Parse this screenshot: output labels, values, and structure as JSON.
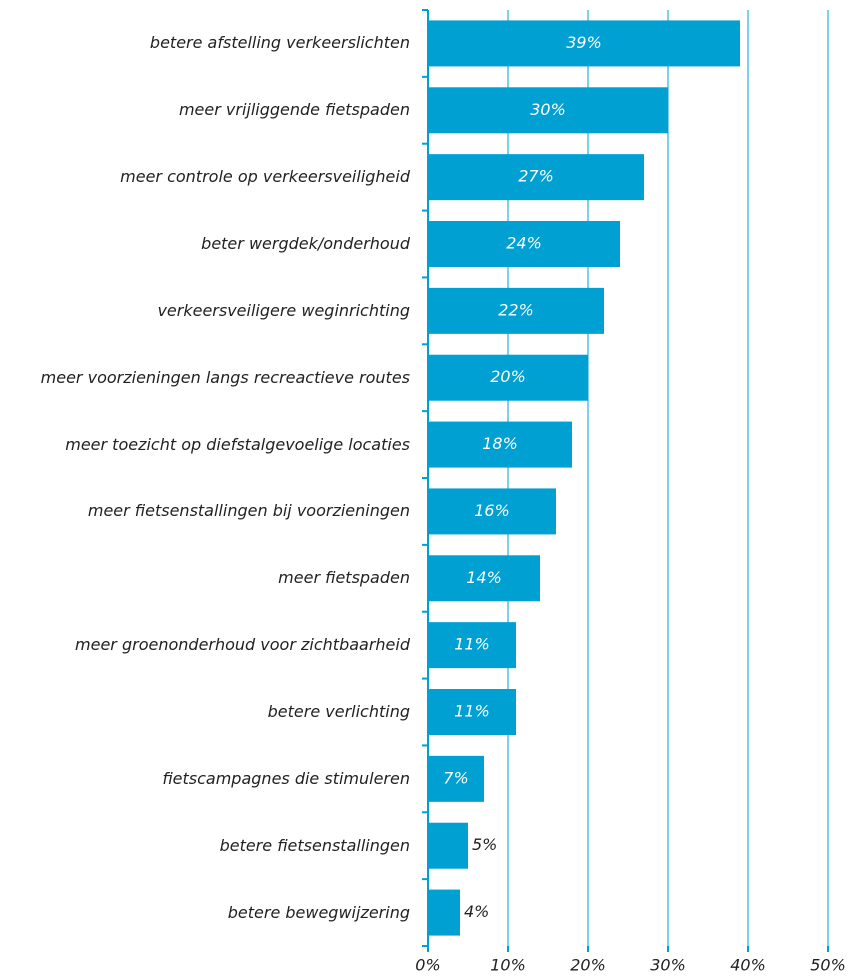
{
  "chart_data": {
    "type": "barh",
    "categories": [
      "betere afstelling verkeerslichten",
      "meer vrijliggende fietspaden",
      "meer controle op verkeersveiligheid",
      "beter wergdek/onderhoud",
      "verkeersveiligere weginrichting",
      "meer voorzieningen langs recreactieve routes",
      "meer toezicht op diefstalgevoelige locaties",
      "meer fietsenstallingen bij voorzieningen",
      "meer fietspaden",
      "meer groenonderhoud voor zichtbaarheid",
      "betere verlichting",
      "fietscampagnes die stimuleren",
      "betere fietsenstallingen",
      "betere bewegwijzering"
    ],
    "values": [
      39,
      30,
      27,
      24,
      22,
      20,
      18,
      16,
      14,
      11,
      11,
      7,
      5,
      4
    ],
    "value_labels": [
      "39%",
      "30%",
      "27%",
      "24%",
      "22%",
      "20%",
      "18%",
      "16%",
      "14%",
      "11%",
      "11%",
      "7%",
      "5%",
      "4%"
    ],
    "color": "#00a0d2",
    "xlim": [
      0,
      50
    ],
    "xticks": [
      {
        "value": 0,
        "label": "0%"
      },
      {
        "value": 10,
        "label": "10%"
      },
      {
        "value": 20,
        "label": "20%"
      },
      {
        "value": 30,
        "label": "30%"
      },
      {
        "value": 40,
        "label": "40%"
      },
      {
        "value": 50,
        "label": "50%"
      }
    ],
    "grid": true
  }
}
